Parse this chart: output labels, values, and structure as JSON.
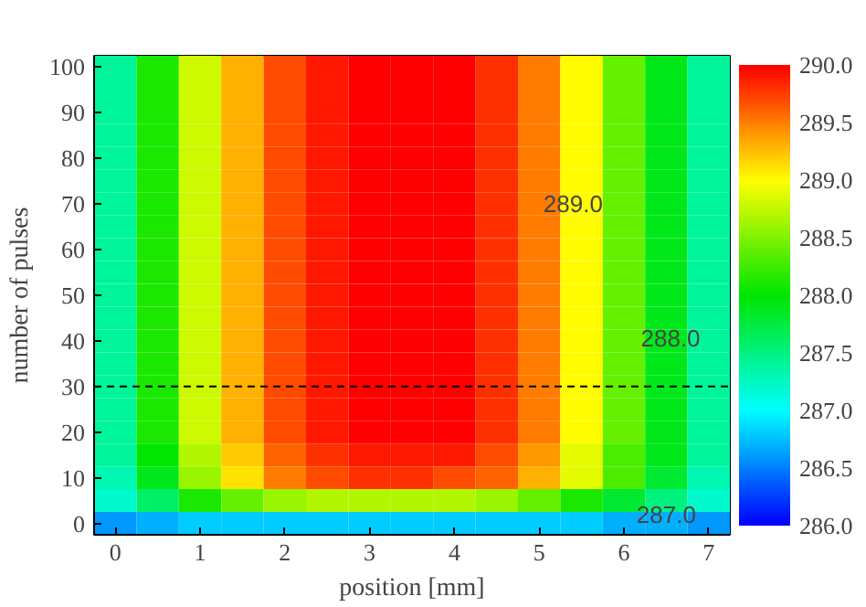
{
  "chart_data": {
    "type": "heatmap",
    "xlabel": "position [mm]",
    "ylabel": "number of pulses",
    "categories": [
      "0",
      null,
      "1",
      null,
      "2",
      null,
      "3",
      null,
      "4",
      null,
      "5",
      null,
      "6",
      null,
      "7"
    ],
    "y_categories": [
      "100",
      null,
      "90",
      null,
      "80",
      null,
      "70",
      null,
      "60",
      null,
      "50",
      null,
      "40",
      null,
      "30",
      null,
      "20",
      null,
      "10",
      null,
      "0"
    ],
    "cells": [
      [
        287.4,
        288.1,
        288.8,
        289.3,
        289.7,
        289.9,
        290.0,
        290.0,
        290.0,
        289.8,
        289.5,
        289.0,
        288.4,
        287.9,
        287.4
      ],
      [
        287.4,
        288.1,
        288.8,
        289.3,
        289.7,
        289.9,
        290.0,
        290.0,
        290.0,
        289.8,
        289.5,
        289.0,
        288.4,
        287.9,
        287.4
      ],
      [
        287.4,
        288.1,
        288.8,
        289.3,
        289.7,
        289.9,
        290.0,
        290.0,
        290.0,
        289.8,
        289.5,
        289.0,
        288.4,
        287.9,
        287.4
      ],
      [
        287.4,
        288.1,
        288.8,
        289.3,
        289.7,
        289.9,
        290.0,
        290.0,
        290.0,
        289.8,
        289.5,
        289.0,
        288.4,
        287.9,
        287.4
      ],
      [
        287.4,
        288.1,
        288.8,
        289.3,
        289.7,
        289.9,
        290.0,
        290.0,
        290.0,
        289.8,
        289.5,
        289.0,
        288.4,
        287.9,
        287.4
      ],
      [
        287.4,
        288.1,
        288.8,
        289.3,
        289.7,
        289.9,
        290.0,
        290.0,
        290.0,
        289.8,
        289.5,
        289.0,
        288.4,
        287.9,
        287.4
      ],
      [
        287.4,
        288.1,
        288.8,
        289.3,
        289.7,
        289.9,
        290.0,
        290.0,
        290.0,
        289.8,
        289.5,
        289.0,
        288.4,
        287.9,
        287.4
      ],
      [
        287.4,
        288.1,
        288.8,
        289.3,
        289.7,
        289.9,
        290.0,
        290.0,
        290.0,
        289.8,
        289.5,
        289.0,
        288.4,
        287.9,
        287.4
      ],
      [
        287.4,
        288.1,
        288.8,
        289.3,
        289.7,
        289.9,
        290.0,
        290.0,
        290.0,
        289.8,
        289.5,
        289.0,
        288.4,
        287.9,
        287.4
      ],
      [
        287.4,
        288.1,
        288.8,
        289.3,
        289.7,
        289.9,
        290.0,
        290.0,
        290.0,
        289.8,
        289.5,
        289.0,
        288.4,
        287.9,
        287.4
      ],
      [
        287.4,
        288.1,
        288.8,
        289.3,
        289.7,
        289.9,
        290.0,
        290.0,
        290.0,
        289.8,
        289.5,
        289.0,
        288.4,
        287.9,
        287.4
      ],
      [
        287.4,
        288.1,
        288.8,
        289.3,
        289.7,
        289.9,
        290.0,
        290.0,
        290.0,
        289.8,
        289.5,
        289.0,
        288.4,
        287.9,
        287.4
      ],
      [
        287.4,
        288.1,
        288.8,
        289.3,
        289.7,
        289.9,
        290.0,
        290.0,
        290.0,
        289.8,
        289.5,
        289.0,
        288.4,
        287.9,
        287.4
      ],
      [
        287.4,
        288.1,
        288.8,
        289.3,
        289.7,
        289.9,
        290.0,
        290.0,
        290.0,
        289.8,
        289.5,
        289.0,
        288.4,
        287.9,
        287.4
      ],
      [
        287.4,
        288.1,
        288.8,
        289.3,
        289.7,
        289.9,
        290.0,
        290.0,
        290.0,
        289.8,
        289.5,
        289.0,
        288.4,
        287.9,
        287.4
      ],
      [
        287.4,
        288.1,
        288.8,
        289.3,
        289.7,
        289.9,
        290.0,
        290.0,
        290.0,
        289.8,
        289.5,
        289.0,
        288.4,
        287.9,
        287.4
      ],
      [
        287.4,
        288.1,
        288.8,
        289.3,
        289.7,
        289.9,
        290.0,
        290.0,
        290.0,
        289.8,
        289.5,
        289.0,
        288.4,
        287.9,
        287.4
      ],
      [
        287.4,
        288.0,
        288.7,
        289.2,
        289.6,
        289.8,
        289.9,
        289.9,
        289.9,
        289.7,
        289.4,
        288.9,
        288.3,
        287.9,
        287.4
      ],
      [
        287.3,
        287.9,
        288.6,
        289.1,
        289.5,
        289.7,
        289.8,
        289.8,
        289.7,
        289.6,
        289.3,
        288.9,
        288.3,
        287.8,
        287.3
      ],
      [
        287.2,
        287.6,
        288.1,
        288.4,
        288.6,
        288.7,
        288.7,
        288.7,
        288.7,
        288.6,
        288.4,
        288.1,
        287.8,
        287.5,
        287.2
      ],
      [
        286.6,
        286.7,
        286.8,
        286.8,
        286.8,
        286.8,
        286.8,
        286.8,
        286.8,
        286.8,
        286.8,
        286.8,
        286.7,
        286.7,
        286.6
      ]
    ],
    "clim": [
      286.0,
      290.0
    ],
    "cticks": [
      {
        "value": 286.0,
        "label": "286.0"
      },
      {
        "value": 286.5,
        "label": "286.5"
      },
      {
        "value": 287.0,
        "label": "287.0"
      },
      {
        "value": 287.5,
        "label": "287.5"
      },
      {
        "value": 288.0,
        "label": "288.0"
      },
      {
        "value": 288.5,
        "label": "288.5"
      },
      {
        "value": 289.0,
        "label": "289.0"
      },
      {
        "value": 289.5,
        "label": "289.5"
      },
      {
        "value": 290.0,
        "label": "290.0"
      }
    ],
    "annotations": [
      "289.0",
      "288.0",
      "287.0"
    ]
  }
}
